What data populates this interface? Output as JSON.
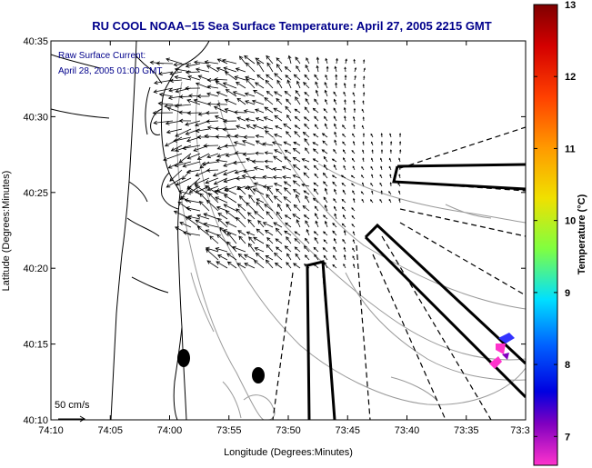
{
  "title": "RU COOL  NOAA−15  Sea Surface Temperature:  April 27, 2005 2215 GMT",
  "legend": {
    "line1": "Raw Surface Current:",
    "line2": "April 28, 2005 01:00 GMT"
  },
  "scale": {
    "label": "50 cm/s"
  },
  "axes": {
    "xlabel": "Longitude (Degrees:Minutes)",
    "ylabel": "Latitude (Degrees:Minutes)",
    "xticks": [
      "74:10",
      "74:05",
      "74:00",
      "73:55",
      "73:50",
      "73:45",
      "73:40",
      "73:35",
      "73:3"
    ],
    "yticks": [
      "40:35",
      "40:30",
      "40:25",
      "40:20",
      "40:15",
      "40:10"
    ]
  },
  "colorbar": {
    "label": "Temperature (°C)",
    "ticks": [
      "13",
      "12",
      "11",
      "10",
      "9",
      "8",
      "7"
    ],
    "range": [
      6.6,
      13
    ]
  },
  "colors": {
    "title": "#00008b",
    "coast": "#000000",
    "bathymetry": "#9a9a9a",
    "warm_patch": "#ff33cc",
    "cold_patch": "#3333ff"
  }
}
